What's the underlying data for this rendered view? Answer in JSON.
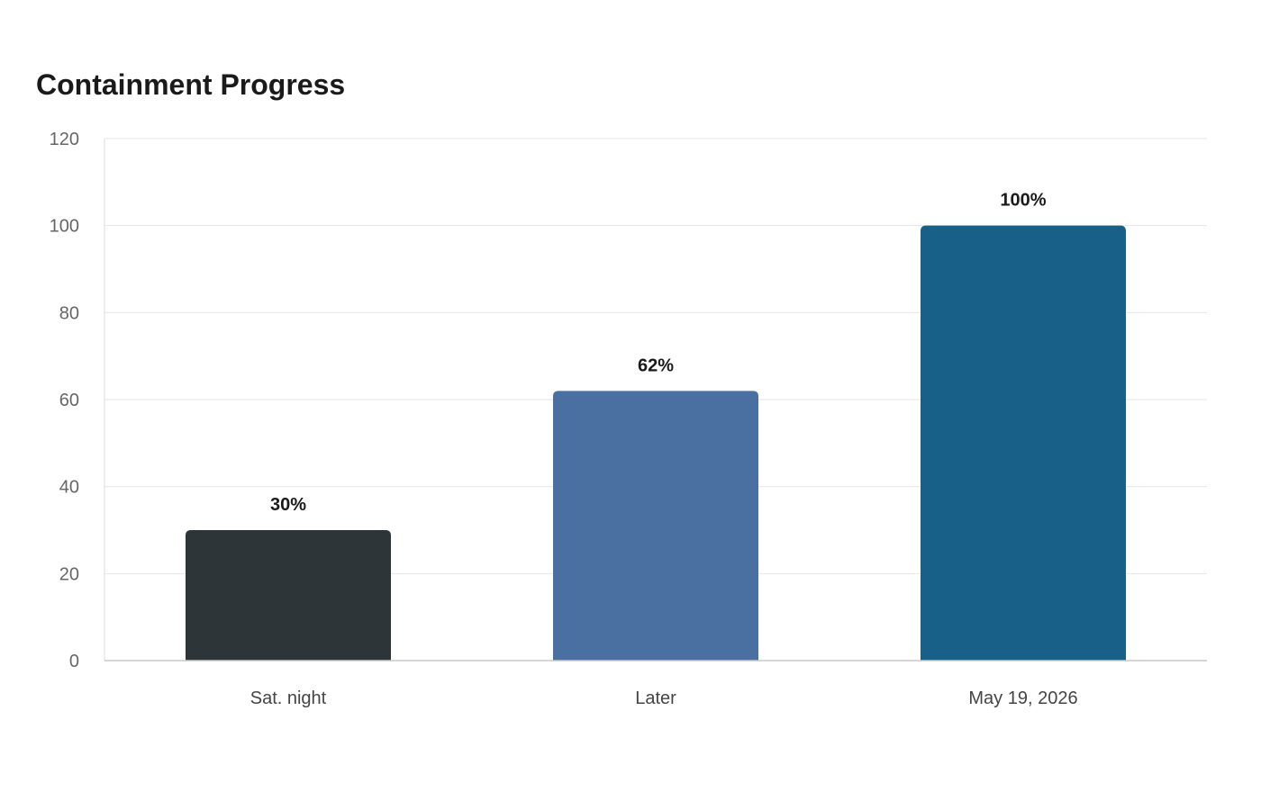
{
  "chart_data": {
    "type": "bar",
    "title": "Containment Progress",
    "categories": [
      "Sat. night",
      "Later",
      "May 19, 2026"
    ],
    "values": [
      30,
      62,
      100
    ],
    "data_labels": [
      "30%",
      "62%",
      "100%"
    ],
    "colors": [
      "#2e3538",
      "#4a6fa1",
      "#186087"
    ],
    "ylim": [
      0,
      120
    ],
    "yticks": [
      0,
      20,
      40,
      60,
      80,
      100,
      120
    ],
    "grid": true,
    "xlabel": "",
    "ylabel": ""
  }
}
